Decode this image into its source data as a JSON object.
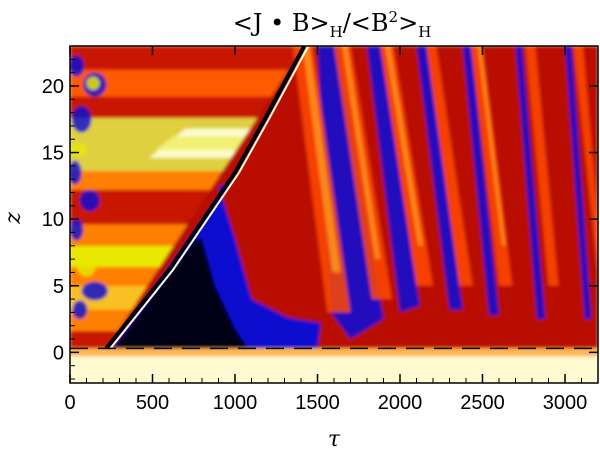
{
  "chart_data": {
    "type": "heatmap",
    "title": {
      "part1": "<J • B>",
      "sub1": "H",
      "part2": "/<B",
      "sup": "2",
      "part3": ">",
      "sub2": "H"
    },
    "xlabel": "τ",
    "ylabel": "z",
    "xlim": [
      0,
      3200
    ],
    "ylim": [
      -2.3,
      23
    ],
    "xticks": [
      0,
      500,
      1000,
      1500,
      2000,
      2500,
      3000
    ],
    "yticks": [
      0,
      5,
      10,
      15,
      20
    ],
    "reference_line": {
      "y": 0.3,
      "style": "dashed"
    },
    "front": [
      [
        220,
        0.3
      ],
      [
        600,
        6.2
      ],
      [
        1000,
        13.5
      ],
      [
        1180,
        17.5
      ],
      [
        1420,
        23
      ]
    ],
    "colors": {
      "low": "#000016",
      "mid_low": "#1010d0",
      "mid": "#c81400",
      "high": "#ff8000",
      "peak": "#ffffd8",
      "lower_band": "#fffad0",
      "frame": "#000000"
    }
  }
}
